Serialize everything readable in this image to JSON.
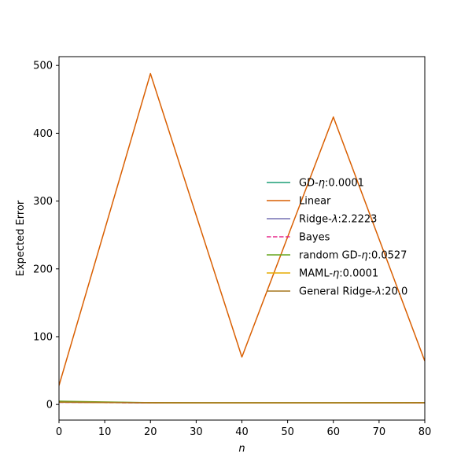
{
  "chart_data": {
    "type": "line",
    "xlabel": "n",
    "ylabel": "Expected Error",
    "xlim": [
      0,
      80
    ],
    "ylim": [
      -23,
      513
    ],
    "xticks": [
      0,
      10,
      20,
      30,
      40,
      50,
      60,
      70,
      80
    ],
    "yticks": [
      0,
      100,
      200,
      300,
      400,
      500
    ],
    "grid": false,
    "legend_position": "center-right",
    "x": [
      0,
      20,
      40,
      60,
      80
    ],
    "series": [
      {
        "name": "GD-η:0.0001",
        "name_prefix": "GD-",
        "name_symbol": "η",
        "name_suffix": ":0.0001",
        "color": "#1b9e77",
        "dash": "solid",
        "values": [
          3.5,
          2.5,
          2.4,
          2.4,
          2.5
        ]
      },
      {
        "name": "Linear",
        "name_prefix": "Linear",
        "name_symbol": "",
        "name_suffix": "",
        "color": "#d95f02",
        "dash": "solid",
        "values": [
          28,
          488,
          70,
          424,
          64
        ]
      },
      {
        "name": "Ridge-λ:2.2223",
        "name_prefix": "Ridge-",
        "name_symbol": "λ",
        "name_suffix": ":2.2223",
        "color": "#7570b3",
        "dash": "solid",
        "values": [
          3.3,
          2.4,
          2.3,
          2.3,
          2.4
        ]
      },
      {
        "name": "Bayes",
        "name_prefix": "Bayes",
        "name_symbol": "",
        "name_suffix": "",
        "color": "#e7298a",
        "dash": "dashed",
        "values": [
          3.2,
          2.3,
          2.2,
          2.2,
          2.3
        ]
      },
      {
        "name": "random GD-η:0.0527",
        "name_prefix": "random GD-",
        "name_symbol": "η",
        "name_suffix": ":0.0527",
        "color": "#66a61e",
        "dash": "solid",
        "values": [
          4.8,
          2.6,
          2.5,
          2.5,
          2.8
        ]
      },
      {
        "name": "MAML-η:0.0001",
        "name_prefix": "MAML-",
        "name_symbol": "η",
        "name_suffix": ":0.0001",
        "color": "#e6ab02",
        "dash": "solid",
        "values": [
          3.4,
          2.5,
          2.4,
          2.4,
          2.5
        ]
      },
      {
        "name": "General Ridge-λ:20.0",
        "name_prefix": "General Ridge-",
        "name_symbol": "λ",
        "name_suffix": ":20.0",
        "color": "#a6761d",
        "dash": "solid",
        "values": [
          3.6,
          2.6,
          2.5,
          2.5,
          2.6
        ]
      }
    ]
  }
}
